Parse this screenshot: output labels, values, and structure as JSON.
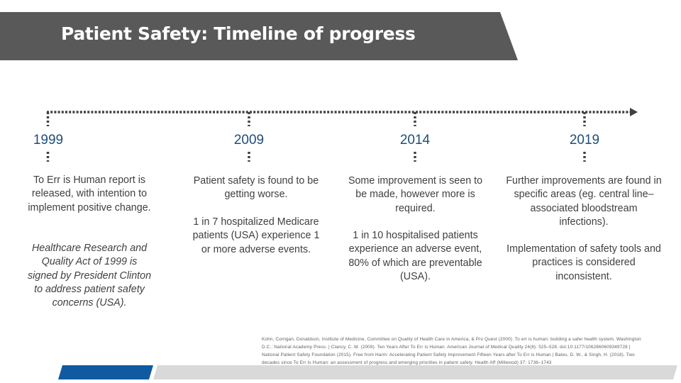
{
  "title": "Patient Safety: Timeline of progress",
  "colors": {
    "banner": "#595959",
    "year": "#1f4e79",
    "timeline": "#404040",
    "bar_blue": "#0f5aa0",
    "bar_gray": "#d9d9d9"
  },
  "milestones": [
    {
      "year": "1999",
      "paragraphs": [
        "To Err is Human report is released, with intention to implement positive change.",
        "Healthcare Research and Quality Act of 1999 is signed by President Clinton to address patient safety concerns (USA)."
      ]
    },
    {
      "year": "2009",
      "paragraphs": [
        "Patient safety is found to be getting worse.",
        "1 in 7 hospitalized Medicare patients (USA) experience 1 or more adverse events."
      ]
    },
    {
      "year": "2014",
      "paragraphs": [
        "Some improvement is seen to be made, however more is required.",
        "1 in 10 hospitalised patients experience an adverse event, 80% of which are preventable (USA)."
      ]
    },
    {
      "year": "2019",
      "paragraphs": [
        "Further improvements are found in specific areas (eg. central line–associated bloodstream infections).",
        "Implementation of safety tools and practices is considered inconsistent."
      ]
    }
  ],
  "references": {
    "line1": "Kohn, Corrigan, Donaldson, Institute of Medicine, Committee on Quality of Health Care in America, & Pro Quest (2000). To err is human: building a safer health system. Washington",
    "line2": "D.C.: National Academy Press. | Clancy, C. M. (2009). Ten Years After To Err is Human. American Journal of Medical Quality 24(6): 525–528. doi:10.1177/1062860609349728 |",
    "line3": "National Patient Safety Foundation (2015). Free from Harm: Accelerating Patient Safety Improvement Fifteen Years after To Err is Human | Bates, D. W., & Singh, H. (2018). Two",
    "line4": "decades since To Err Is Human: an assessment of progress and emerging priorities in patient safety. Health Aff (Millwood) 37: 1736–1743"
  }
}
